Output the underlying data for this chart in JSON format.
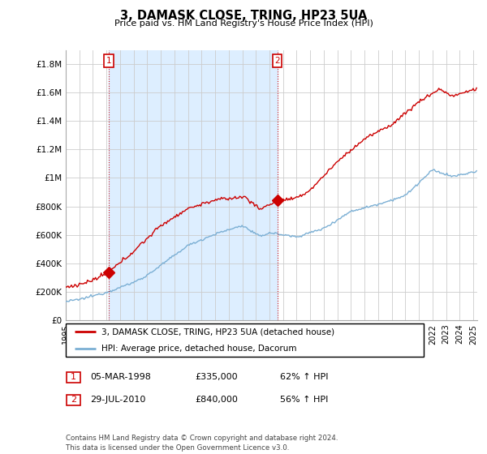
{
  "title": "3, DAMASK CLOSE, TRING, HP23 5UA",
  "subtitle": "Price paid vs. HM Land Registry's House Price Index (HPI)",
  "ylabel_ticks": [
    "£0",
    "£200K",
    "£400K",
    "£600K",
    "£800K",
    "£1M",
    "£1.2M",
    "£1.4M",
    "£1.6M",
    "£1.8M"
  ],
  "ytick_values": [
    0,
    200000,
    400000,
    600000,
    800000,
    1000000,
    1200000,
    1400000,
    1600000,
    1800000
  ],
  "ylim": [
    0,
    1900000
  ],
  "xlim_start": 1995.0,
  "xlim_end": 2025.3,
  "sale1_year": 1998.17,
  "sale1_price": 335000,
  "sale1_label": "1",
  "sale2_year": 2010.57,
  "sale2_price": 840000,
  "sale2_label": "2",
  "hpi_line_color": "#7bafd4",
  "price_line_color": "#cc0000",
  "annotation_box_color": "#cc0000",
  "shade_color": "#ddeeff",
  "legend_label_red": "3, DAMASK CLOSE, TRING, HP23 5UA (detached house)",
  "legend_label_blue": "HPI: Average price, detached house, Dacorum",
  "table_row1": [
    "1",
    "05-MAR-1998",
    "£335,000",
    "62% ↑ HPI"
  ],
  "table_row2": [
    "2",
    "29-JUL-2010",
    "£840,000",
    "56% ↑ HPI"
  ],
  "footer": "Contains HM Land Registry data © Crown copyright and database right 2024.\nThis data is licensed under the Open Government Licence v3.0.",
  "grid_color": "#cccccc",
  "background_color": "#ffffff"
}
